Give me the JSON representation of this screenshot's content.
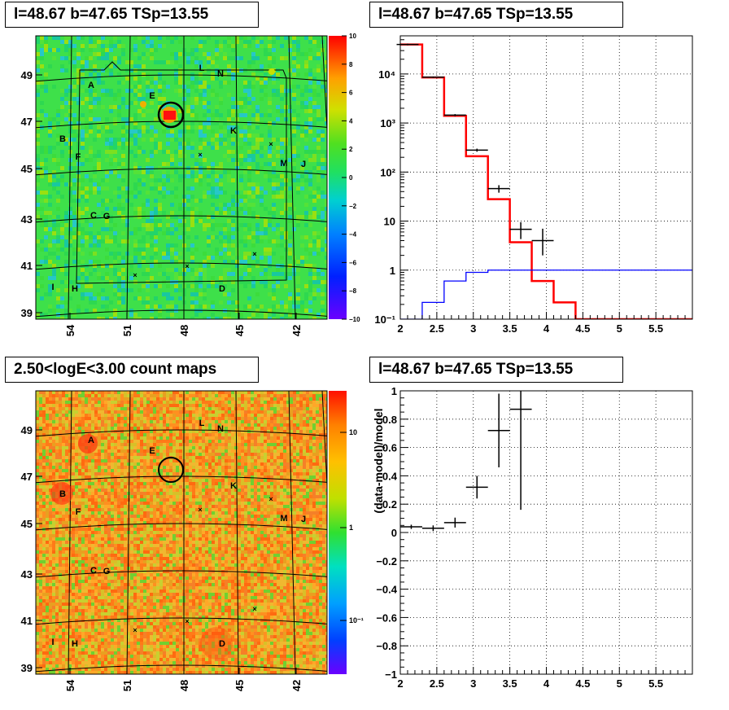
{
  "panels": {
    "top_left_title": "l=48.67 b=47.65 TSp=13.55",
    "top_right_title": "l=48.67 b=47.65 TSp=13.55",
    "bottom_left_title": "2.50<logE<3.00 count maps",
    "bottom_right_title": "l=48.67 b=47.65 TSp=13.55"
  },
  "colors": {
    "model_line": "#ff0000",
    "background_line": "#0000ff",
    "data": "#000000",
    "circle": "#000000"
  },
  "sky_labels": [
    "A",
    "B",
    "C",
    "D",
    "E",
    "F",
    "G",
    "H",
    "I",
    "J",
    "K",
    "L",
    "M",
    "N"
  ],
  "chart_data": [
    {
      "type": "heatmap",
      "name": "TS map",
      "xlabel": "",
      "ylabel": "",
      "x_ticks": [
        "54",
        "51",
        "48",
        "45",
        "42"
      ],
      "y_ticks": [
        "49",
        "47",
        "45",
        "43",
        "41",
        "39"
      ],
      "colorbar_ticks": [
        "10",
        "8",
        "6",
        "4",
        "2",
        "0",
        "−2",
        "−4",
        "−6",
        "−8",
        "−10"
      ],
      "colorbar_range": [
        -10,
        10
      ],
      "source": {
        "l": 48.67,
        "b": 47.65,
        "TSp": 13.55
      },
      "labels": [
        "A",
        "B",
        "C",
        "D",
        "E",
        "F",
        "G",
        "H",
        "I",
        "J",
        "K",
        "L",
        "M",
        "N"
      ]
    },
    {
      "type": "line",
      "name": "counts spectrum",
      "xlabel": "",
      "ylabel": "",
      "xlim": [
        2,
        6
      ],
      "ylim": [
        0.1,
        60000
      ],
      "y_scale": "log",
      "x_ticks": [
        "2",
        "2.5",
        "3",
        "3.5",
        "4",
        "4.5",
        "5",
        "5.5"
      ],
      "y_ticks": [
        "10⁻¹",
        "1",
        "10",
        "10²",
        "10³",
        "10⁴"
      ],
      "x_bins": [
        2.0,
        2.3,
        2.6,
        2.9,
        3.2,
        3.5,
        3.8,
        4.1,
        4.4,
        6.0
      ],
      "series": [
        {
          "name": "",
          "role": "model",
          "values": [
            40000,
            8500,
            1400,
            210,
            28,
            3.7,
            0.6,
            0.22,
            0.1
          ]
        },
        {
          "name": "",
          "role": "background",
          "values": [
            0.1,
            0.22,
            0.6,
            0.9,
            1.0,
            1.0,
            1.0,
            1.0,
            1.0
          ]
        }
      ],
      "data_points": [
        {
          "x": 2.1,
          "xerr": 0.15,
          "y": 40000,
          "ylo": 38500,
          "yhi": 41500
        },
        {
          "x": 2.45,
          "xerr": 0.15,
          "y": 8600,
          "ylo": 8300,
          "yhi": 8900
        },
        {
          "x": 2.75,
          "xerr": 0.15,
          "y": 1450,
          "ylo": 1380,
          "yhi": 1520
        },
        {
          "x": 3.05,
          "xerr": 0.15,
          "y": 280,
          "ylo": 260,
          "yhi": 300
        },
        {
          "x": 3.35,
          "xerr": 0.15,
          "y": 46,
          "ylo": 38,
          "yhi": 54
        },
        {
          "x": 3.65,
          "xerr": 0.15,
          "y": 6.8,
          "ylo": 4.3,
          "yhi": 9.5
        },
        {
          "x": 3.95,
          "xerr": 0.15,
          "y": 4.0,
          "ylo": 2.0,
          "yhi": 7.0
        }
      ]
    },
    {
      "type": "heatmap",
      "name": "count map",
      "xlabel": "",
      "ylabel": "",
      "x_ticks": [
        "54",
        "51",
        "48",
        "45",
        "42"
      ],
      "y_ticks": [
        "49",
        "47",
        "45",
        "43",
        "41",
        "39"
      ],
      "colorbar_ticks": [
        "10",
        "1",
        "10⁻¹"
      ],
      "colorbar_scale": "log",
      "labels": [
        "A",
        "B",
        "C",
        "D",
        "E",
        "F",
        "G",
        "H",
        "I",
        "J",
        "K",
        "L",
        "M",
        "N"
      ]
    },
    {
      "type": "scatter",
      "name": "residuals",
      "xlabel": "",
      "ylabel": "(data-model)/model",
      "xlim": [
        2,
        6
      ],
      "ylim": [
        -1,
        1
      ],
      "x_ticks": [
        "2",
        "2.5",
        "3",
        "3.5",
        "4",
        "4.5",
        "5",
        "5.5"
      ],
      "y_ticks": [
        "1",
        "0.8",
        "0.6",
        "0.4",
        "0.2",
        "0",
        "−0.2",
        "−0.4",
        "−0.6",
        "−0.8",
        "−1"
      ],
      "points": [
        {
          "x": 2.15,
          "xerr": 0.15,
          "y": 0.04,
          "yerr": 0.015
        },
        {
          "x": 2.45,
          "xerr": 0.15,
          "y": 0.03,
          "yerr": 0.02
        },
        {
          "x": 2.75,
          "xerr": 0.15,
          "y": 0.07,
          "yerr": 0.035
        },
        {
          "x": 3.05,
          "xerr": 0.15,
          "y": 0.32,
          "yerr": 0.08
        },
        {
          "x": 3.35,
          "xerr": 0.15,
          "y": 0.72,
          "yerr": 0.26
        },
        {
          "x": 3.65,
          "xerr": 0.15,
          "y": 0.87,
          "yerr": 0.71
        }
      ]
    }
  ]
}
